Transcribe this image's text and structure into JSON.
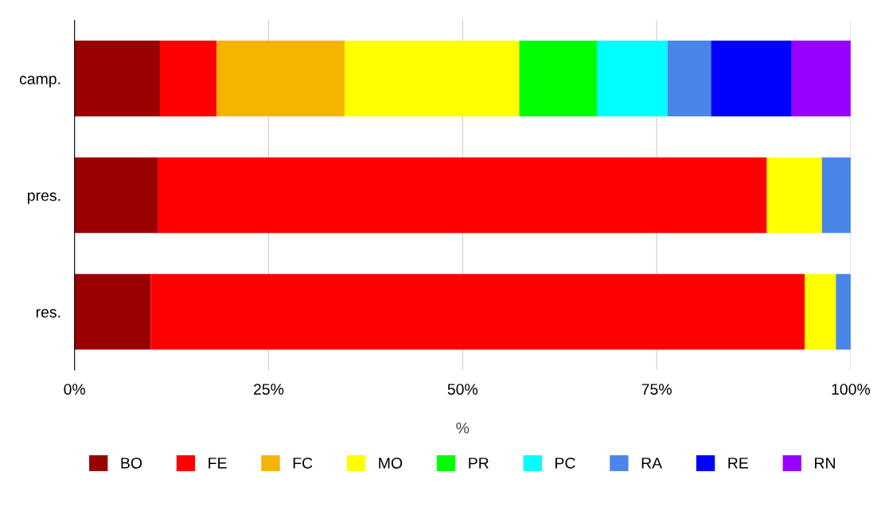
{
  "chart_data": {
    "type": "bar",
    "orientation": "horizontal",
    "stacked": true,
    "xlabel": "%",
    "categories": [
      "camp.",
      "pres.",
      "res."
    ],
    "series": [
      {
        "name": "BO",
        "color": "#990000",
        "values": [
          11.0,
          10.7,
          9.8
        ]
      },
      {
        "name": "FE",
        "color": "#ff0000",
        "values": [
          7.3,
          78.5,
          84.3
        ]
      },
      {
        "name": "FC",
        "color": "#f4b400",
        "values": [
          16.5,
          0,
          0
        ]
      },
      {
        "name": "MO",
        "color": "#ffff00",
        "values": [
          22.5,
          7.1,
          4.0
        ]
      },
      {
        "name": "PR",
        "color": "#00ff00",
        "values": [
          10.0,
          0,
          0
        ]
      },
      {
        "name": "PC",
        "color": "#00ffff",
        "values": [
          9.1,
          0,
          0
        ]
      },
      {
        "name": "RA",
        "color": "#4a86e8",
        "values": [
          5.6,
          3.7,
          1.9
        ]
      },
      {
        "name": "RE",
        "color": "#0000ff",
        "values": [
          10.4,
          0,
          0
        ]
      },
      {
        "name": "RN",
        "color": "#9900ff",
        "values": [
          7.6,
          0,
          0
        ]
      }
    ],
    "xlim": [
      0,
      100
    ],
    "xticks": [
      {
        "value": 0,
        "label": "0%"
      },
      {
        "value": 25,
        "label": "25%"
      },
      {
        "value": 50,
        "label": "50%"
      },
      {
        "value": 75,
        "label": "75%"
      },
      {
        "value": 100,
        "label": "100%"
      }
    ],
    "grid": "x",
    "legend": "bottom"
  }
}
